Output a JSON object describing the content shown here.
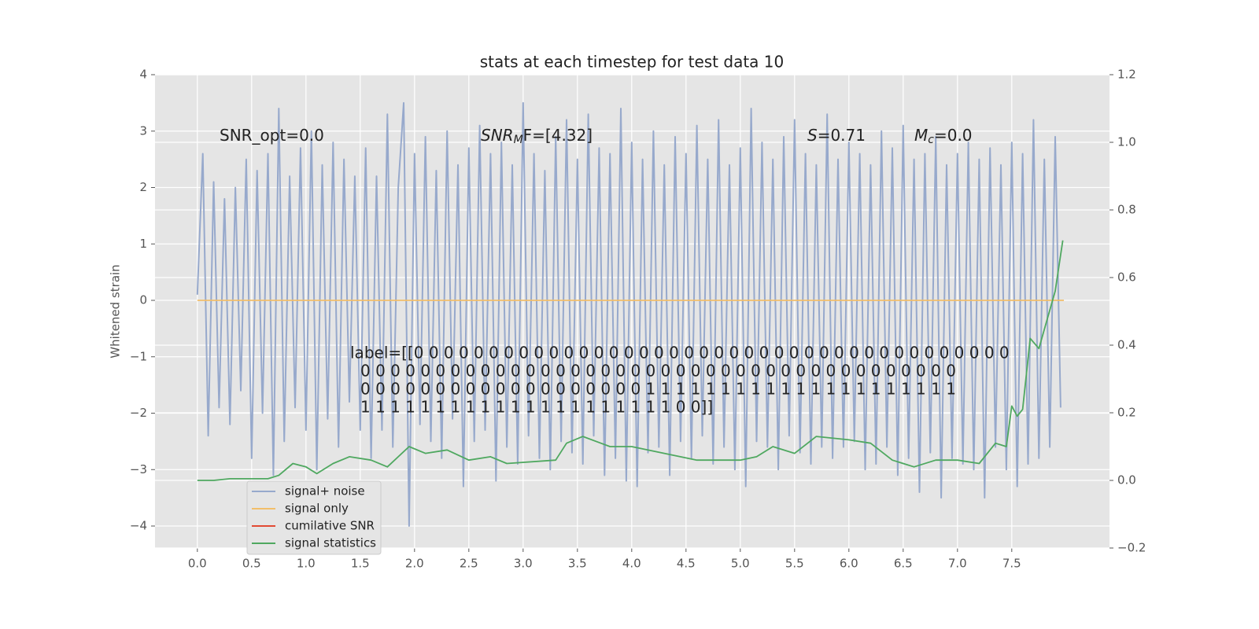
{
  "chart_data": {
    "type": "line",
    "title": "stats at each timestep for test data 10",
    "ylabel": "Whitened strain",
    "xlim": [
      -0.39,
      8.4
    ],
    "ylim": [
      -4.39,
      4.0
    ],
    "y2lim": [
      -0.2,
      1.2
    ],
    "xticks": [
      {
        "value": 0,
        "label": "0.0"
      },
      0.5,
      {
        "value": 1,
        "label": "1.0"
      },
      1.5,
      {
        "value": 2,
        "label": "2.0"
      },
      2.5,
      {
        "value": 3,
        "label": "3.0"
      },
      3.5,
      {
        "value": 4,
        "label": "4.0"
      },
      4.5,
      {
        "value": 5,
        "label": "5.0"
      },
      5.5,
      {
        "value": 6,
        "label": "6.0"
      },
      6.5,
      {
        "value": 7,
        "label": "7.0"
      },
      7.5
    ],
    "yticks": [
      {
        "value": -4,
        "label": "−4"
      },
      {
        "value": -3,
        "label": "−3"
      },
      {
        "value": -2,
        "label": "−2"
      },
      {
        "value": -1,
        "label": "−1"
      },
      0,
      1,
      2,
      3,
      4
    ],
    "y2ticks": [
      {
        "value": -0.2,
        "label": "−0.2"
      },
      {
        "value": 0,
        "label": "0.0"
      },
      0.2,
      0.4,
      0.6,
      0.8,
      {
        "value": 1,
        "label": "1.0"
      },
      1.2
    ],
    "grid": true,
    "legend_loc": "lower left",
    "annotations": [
      {
        "symbol": "SNR_opt=0.0"
      },
      {
        "symbol": "SNR",
        "sub": "M",
        "rest": "F=[4.32]"
      },
      {
        "symbol": "S",
        "rest": "=0.71"
      },
      {
        "symbol": "M",
        "sub": "c",
        "rest": "=0.0"
      }
    ],
    "label_text": [
      "label=[[0 0 0 0 0 0 0 0 0 0 0 0 0 0 0 0 0 0 0 0 0 0 0 0 0 0 0 0 0 0 0 0 0 0 0 0 0 0 0 0",
      "0 0 0 0 0 0 0 0 0 0 0 0 0 0 0 0 0 0 0 0 0 0 0 0 0 0 0 0 0 0 0 0 0 0 0 0 0 0 0 0",
      "0 0 0 0 0 0 0 0 0 0 0 0 0 0 0 0 0 0 0 1 1 1 1 1 1 1 1 1 1 1 1 1 1 1 1 1 1 1 1 1",
      "1 1 1 1 1 1 1 1 1 1 1 1 1 1 1 1 1 1 1 1 1 0 0]]"
    ],
    "series": [
      {
        "name": "signal+ noise",
        "color": "#97a9cc",
        "axis": "y",
        "x": [
          0,
          0.05,
          0.1,
          0.15,
          0.2,
          0.25,
          0.3,
          0.35,
          0.4,
          0.45,
          0.5,
          0.55,
          0.6,
          0.65,
          0.7,
          0.75,
          0.8,
          0.85,
          0.9,
          0.95,
          1,
          1.05,
          1.1,
          1.15,
          1.2,
          1.25,
          1.3,
          1.35,
          1.4,
          1.45,
          1.5,
          1.55,
          1.6,
          1.65,
          1.7,
          1.75,
          1.8,
          1.85,
          1.9,
          1.95,
          2,
          2.05,
          2.1,
          2.15,
          2.2,
          2.25,
          2.3,
          2.35,
          2.4,
          2.45,
          2.5,
          2.55,
          2.6,
          2.65,
          2.7,
          2.75,
          2.8,
          2.85,
          2.9,
          2.95,
          3,
          3.05,
          3.1,
          3.15,
          3.2,
          3.25,
          3.3,
          3.35,
          3.4,
          3.45,
          3.5,
          3.55,
          3.6,
          3.65,
          3.7,
          3.75,
          3.8,
          3.85,
          3.9,
          3.95,
          4,
          4.05,
          4.1,
          4.15,
          4.2,
          4.25,
          4.3,
          4.35,
          4.4,
          4.45,
          4.5,
          4.55,
          4.6,
          4.65,
          4.7,
          4.75,
          4.8,
          4.85,
          4.9,
          4.95,
          5,
          5.05,
          5.1,
          5.15,
          5.2,
          5.25,
          5.3,
          5.35,
          5.4,
          5.45,
          5.5,
          5.55,
          5.6,
          5.65,
          5.7,
          5.75,
          5.8,
          5.85,
          5.9,
          5.95,
          6,
          6.05,
          6.1,
          6.15,
          6.2,
          6.25,
          6.3,
          6.35,
          6.4,
          6.45,
          6.5,
          6.55,
          6.6,
          6.65,
          6.7,
          6.75,
          6.8,
          6.85,
          6.9,
          6.95,
          7,
          7.05,
          7.1,
          7.15,
          7.2,
          7.25,
          7.3,
          7.35,
          7.4,
          7.45,
          7.5,
          7.55,
          7.6,
          7.65,
          7.7,
          7.75,
          7.8,
          7.85,
          7.9,
          7.95
        ],
        "values": [
          0.1,
          2.6,
          -2.4,
          2.1,
          -1.9,
          1.8,
          -2.2,
          2.0,
          -1.6,
          2.5,
          -2.8,
          2.3,
          -2.0,
          2.6,
          -3.1,
          3.4,
          -2.5,
          2.2,
          -1.9,
          2.7,
          -2.3,
          3.0,
          -3.0,
          2.4,
          -2.1,
          2.8,
          -2.6,
          2.5,
          -1.8,
          2.2,
          -2.3,
          2.7,
          -2.8,
          2.2,
          -2.3,
          3.3,
          -2.6,
          2.0,
          3.5,
          -4.0,
          2.6,
          -2.2,
          2.9,
          -2.5,
          2.3,
          -2.8,
          3.0,
          -2.1,
          2.4,
          -3.3,
          2.7,
          -2.5,
          3.1,
          -2.3,
          2.6,
          -3.2,
          2.8,
          -2.6,
          2.4,
          -2.9,
          3.5,
          -2.4,
          2.6,
          -2.8,
          2.3,
          -3.0,
          2.9,
          -2.5,
          3.2,
          -2.7,
          2.5,
          -2.9,
          3.3,
          -2.4,
          2.7,
          -3.1,
          2.6,
          -2.8,
          3.4,
          -3.2,
          2.8,
          -3.3,
          2.5,
          -2.7,
          3.0,
          -2.6,
          2.4,
          -3.1,
          2.9,
          -2.5,
          2.6,
          -2.8,
          3.1,
          -2.4,
          2.5,
          -2.9,
          3.2,
          -2.6,
          2.4,
          -3.0,
          2.7,
          -3.3,
          3.4,
          -2.5,
          2.8,
          -2.6,
          2.5,
          -3.0,
          2.9,
          -2.4,
          3.2,
          -2.7,
          2.6,
          -2.9,
          2.4,
          -2.6,
          3.3,
          -2.8,
          2.5,
          -2.6,
          2.8,
          -2.5,
          2.6,
          -3.0,
          2.4,
          -2.9,
          3.0,
          -2.6,
          2.7,
          -3.1,
          3.1,
          -2.8,
          2.5,
          -3.4,
          2.6,
          -2.7,
          2.9,
          -3.5,
          2.4,
          -2.8,
          2.6,
          -2.9,
          2.8,
          -3.0,
          2.5,
          -3.5,
          2.7,
          -2.6,
          2.4,
          -3.0,
          2.8,
          -3.3,
          2.6,
          -2.9,
          3.2,
          -2.8,
          2.5,
          -2.6,
          2.9,
          -1.9
        ]
      },
      {
        "name": "signal only",
        "color": "#f2be6a",
        "axis": "y",
        "x": [
          0,
          7.98
        ],
        "values": [
          0,
          0
        ]
      },
      {
        "name": "cumilative SNR",
        "color": "#e24a33",
        "axis": "y2",
        "x": [],
        "values": []
      },
      {
        "name": "signal statistics",
        "color": "#4fa860",
        "axis": "y2",
        "x": [
          0,
          0.15,
          0.3,
          0.65,
          0.75,
          0.88,
          1.0,
          1.1,
          1.25,
          1.4,
          1.6,
          1.75,
          1.95,
          2.1,
          2.3,
          2.5,
          2.7,
          2.85,
          3.3,
          3.4,
          3.55,
          3.8,
          4.0,
          4.3,
          4.6,
          5.0,
          5.15,
          5.3,
          5.5,
          5.7,
          6.0,
          6.2,
          6.4,
          6.6,
          6.8,
          7.0,
          7.2,
          7.35,
          7.45,
          7.5,
          7.55,
          7.6,
          7.67,
          7.75,
          7.9,
          7.97
        ],
        "values": [
          0,
          0,
          0.005,
          0.005,
          0.015,
          0.05,
          0.04,
          0.02,
          0.05,
          0.07,
          0.06,
          0.04,
          0.1,
          0.08,
          0.09,
          0.06,
          0.07,
          0.05,
          0.06,
          0.11,
          0.13,
          0.1,
          0.1,
          0.08,
          0.06,
          0.06,
          0.07,
          0.1,
          0.08,
          0.13,
          0.12,
          0.11,
          0.06,
          0.04,
          0.06,
          0.06,
          0.05,
          0.11,
          0.1,
          0.22,
          0.19,
          0.21,
          0.42,
          0.39,
          0.56,
          0.71
        ]
      }
    ]
  }
}
